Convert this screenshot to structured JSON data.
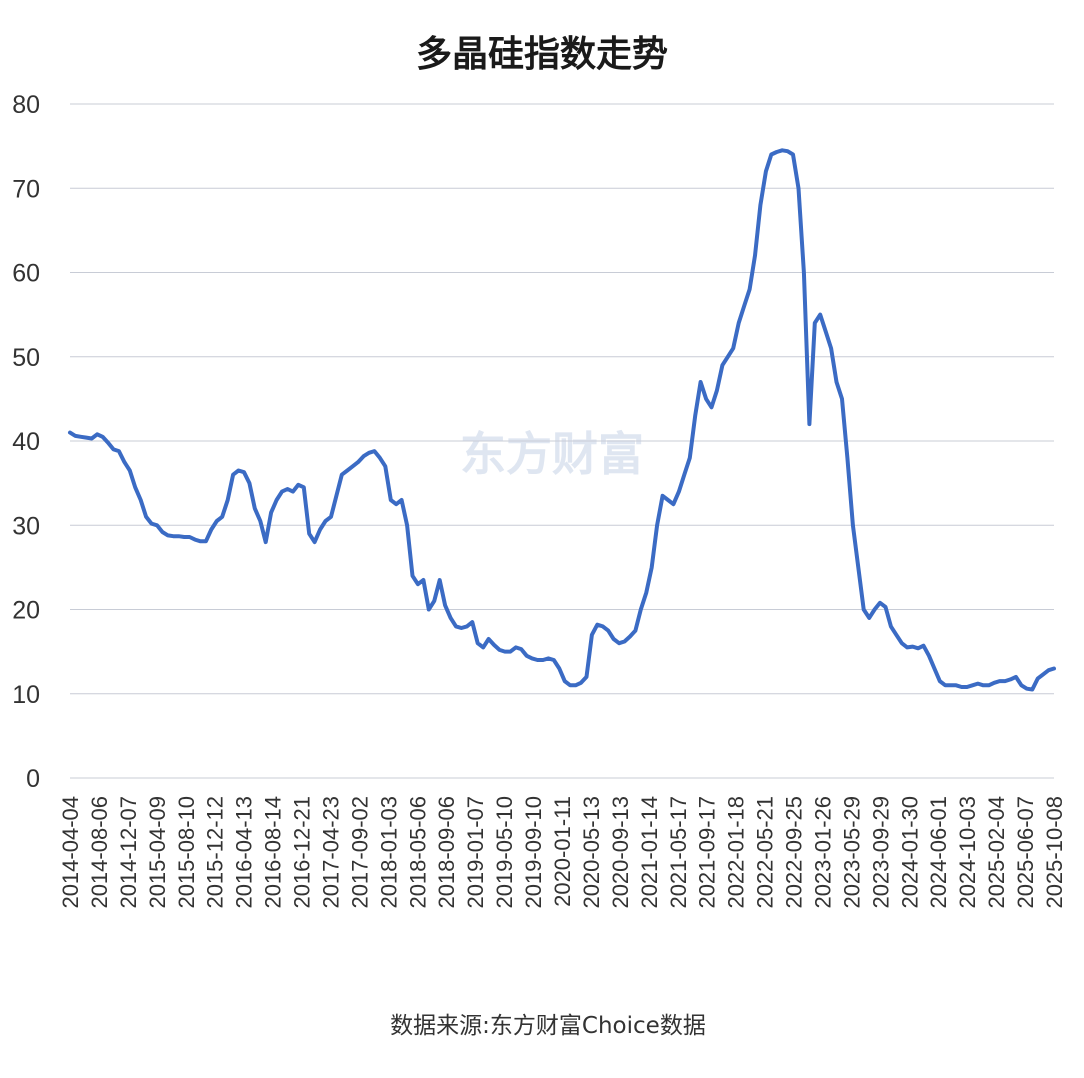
{
  "chart_data": {
    "type": "line",
    "title": "多晶硅指数走势",
    "source_note": "数据来源:东方财富Choice数据",
    "watermark": "东方财富",
    "ylim": [
      0,
      80
    ],
    "yticks": [
      0,
      10,
      20,
      30,
      40,
      50,
      60,
      70,
      80
    ],
    "grid": true,
    "line_color": "#3b6bc4",
    "x_tick_labels": [
      "2014-04-04",
      "2014-08-06",
      "2014-12-07",
      "2015-04-09",
      "2015-08-10",
      "2015-12-12",
      "2016-04-13",
      "2016-08-14",
      "2016-12-21",
      "2017-04-23",
      "2017-09-02",
      "2018-01-03",
      "2018-05-06",
      "2018-09-06",
      "2019-01-07",
      "2019-05-10",
      "2019-09-10",
      "2020-01-11",
      "2020-05-13",
      "2020-09-13",
      "2021-01-14",
      "2021-05-17",
      "2021-09-17",
      "2022-01-18",
      "2022-05-21",
      "2022-09-25",
      "2023-01-26",
      "2023-05-29",
      "2023-09-29",
      "2024-01-30",
      "2024-06-01",
      "2024-10-03",
      "2025-02-04",
      "2025-06-07",
      "2025-10-08"
    ],
    "series": [
      {
        "values": [
          41,
          40.6,
          40.5,
          40.4,
          40.3,
          40.8,
          40.5,
          39.8,
          39,
          38.8,
          37.5,
          36.5,
          34.5,
          33,
          31,
          30.2,
          30,
          29.2,
          28.8,
          28.7,
          28.7,
          28.6,
          28.6,
          28.3,
          28.1,
          28.1,
          29.5,
          30.5,
          31,
          33,
          36,
          36.5,
          36.3,
          35,
          32,
          30.5,
          28,
          31.5,
          33,
          34,
          34.3,
          34,
          34.8,
          34.5,
          29,
          28,
          29.5,
          30.5,
          31,
          33.5,
          36,
          36.5,
          37,
          37.5,
          38.2,
          38.6,
          38.8,
          38,
          37,
          33,
          32.5,
          33,
          30,
          24,
          23,
          23.5,
          20,
          21,
          23.5,
          20.5,
          19,
          18,
          17.8,
          18,
          18.5,
          16,
          15.5,
          16.5,
          15.8,
          15.2,
          15,
          15,
          15.5,
          15.3,
          14.5,
          14.2,
          14,
          14,
          14.2,
          14,
          13,
          11.5,
          11,
          11,
          11.3,
          12,
          17,
          18.2,
          18,
          17.5,
          16.5,
          16,
          16.2,
          16.8,
          17.5,
          20,
          22,
          25,
          30,
          33.5,
          33,
          32.5,
          34,
          36,
          38,
          43,
          47,
          45,
          44,
          46,
          49,
          50,
          51,
          54,
          56,
          58,
          62,
          68,
          72,
          74,
          74.3,
          74.5,
          74.4,
          74,
          70,
          60,
          42,
          54,
          55,
          53,
          51,
          47,
          45,
          38,
          30,
          25,
          20,
          19,
          20,
          20.8,
          20.3,
          18,
          17,
          16,
          15.5,
          15.6,
          15.4,
          15.7,
          14.5,
          13,
          11.5,
          11,
          11,
          11,
          10.8,
          10.8,
          11,
          11.2,
          11,
          11,
          11.3,
          11.5,
          11.5,
          11.7,
          12,
          11,
          10.6,
          10.5,
          11.8,
          12.3,
          12.8,
          13
        ]
      }
    ]
  }
}
